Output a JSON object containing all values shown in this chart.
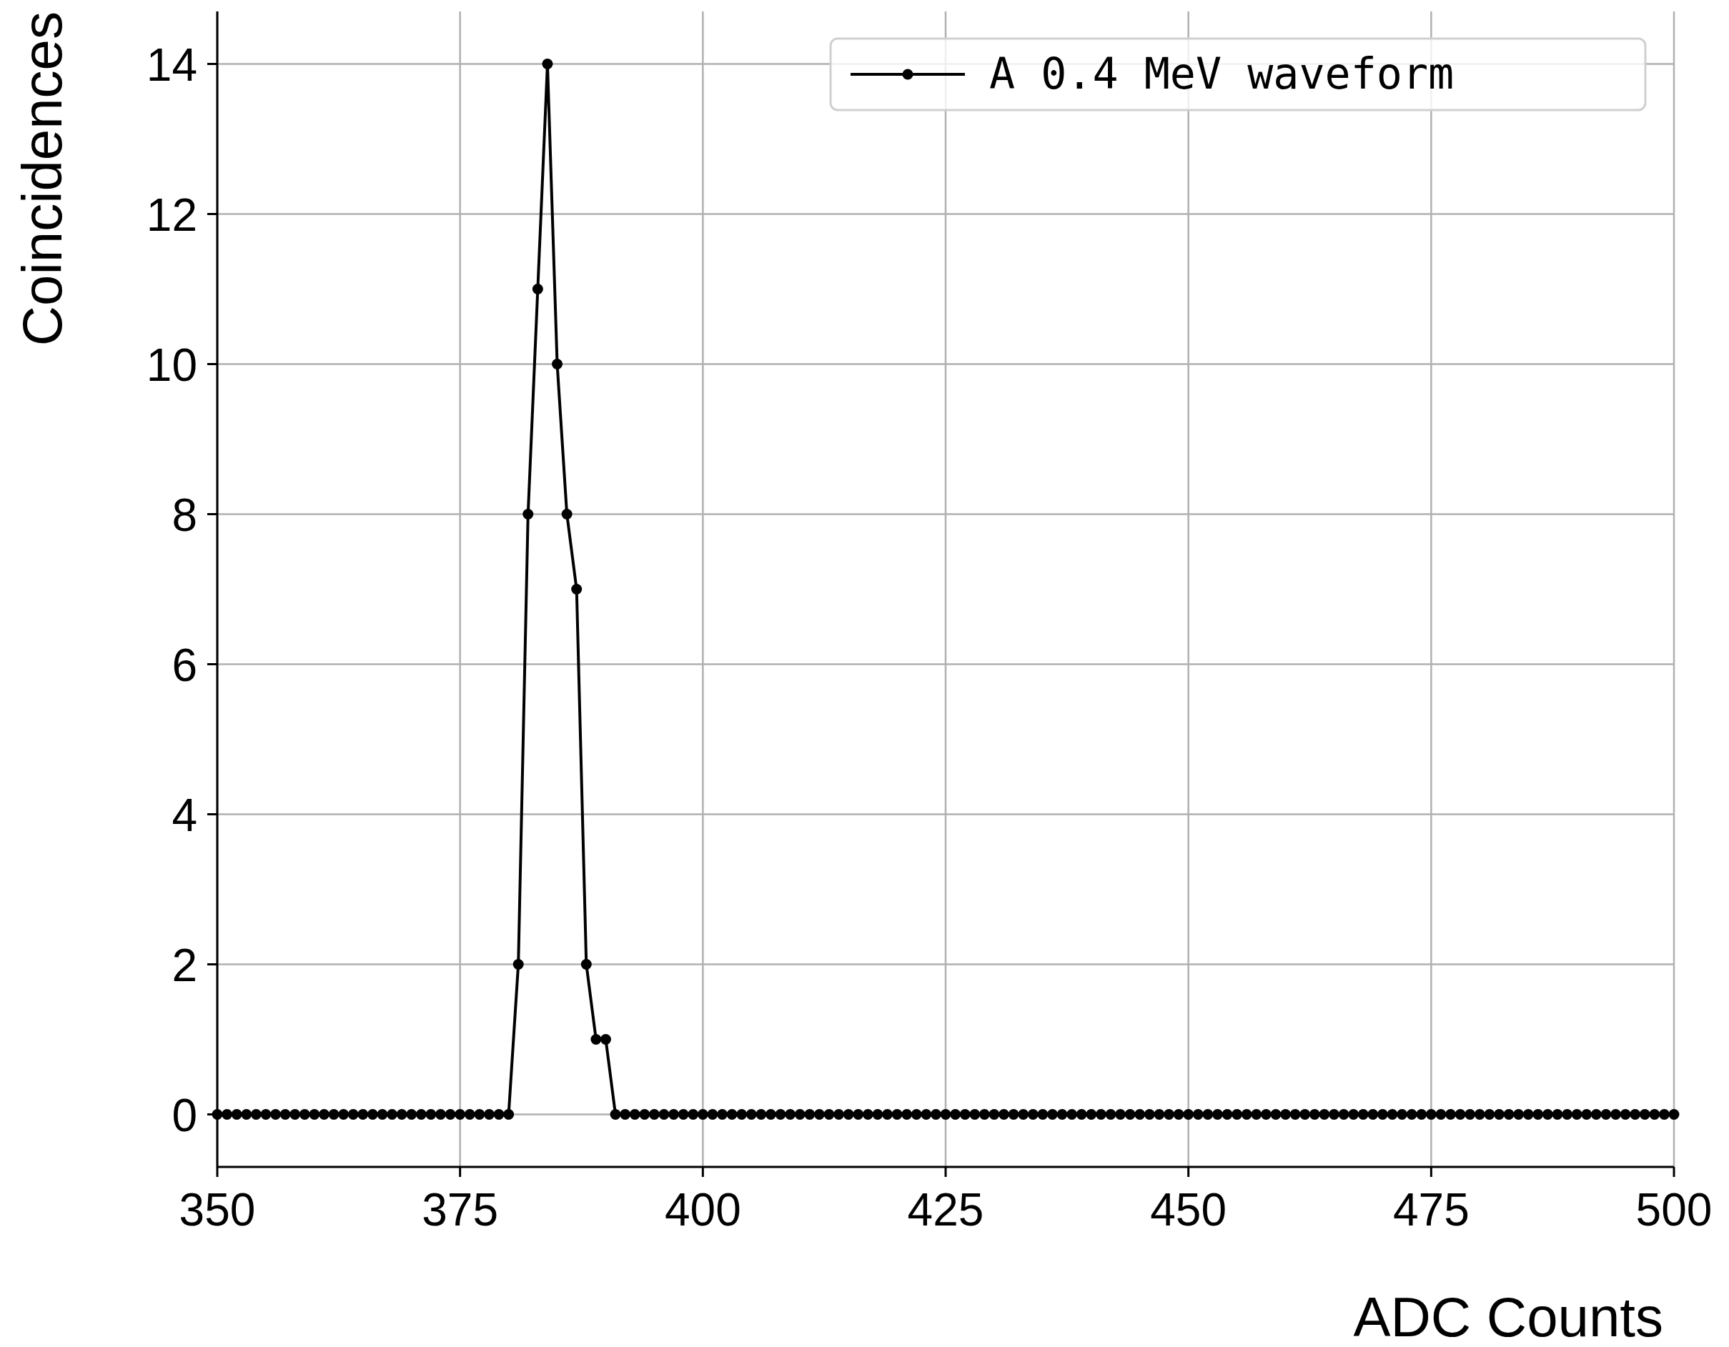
{
  "chart_data": {
    "type": "line",
    "xlabel": "ADC Counts",
    "ylabel": "Coincidences",
    "xlim": [
      350,
      500
    ],
    "xticks": [
      350,
      375,
      400,
      425,
      450,
      475,
      500
    ],
    "ylim": [
      -0.7,
      14.7
    ],
    "yticks": [
      0,
      2,
      4,
      6,
      8,
      10,
      12,
      14
    ],
    "grid": true,
    "legend": "top right",
    "marker": "circle",
    "line_style": "solid",
    "series": [
      {
        "name": "A 0.4 MeV waveform",
        "color": "#000000",
        "x": [
          350,
          351,
          352,
          353,
          354,
          355,
          356,
          357,
          358,
          359,
          360,
          361,
          362,
          363,
          364,
          365,
          366,
          367,
          368,
          369,
          370,
          371,
          372,
          373,
          374,
          375,
          376,
          377,
          378,
          379,
          380,
          381,
          382,
          383,
          384,
          385,
          386,
          387,
          388,
          389,
          390,
          391,
          392,
          393,
          394,
          395,
          396,
          397,
          398,
          399,
          400,
          401,
          402,
          403,
          404,
          405,
          406,
          407,
          408,
          409,
          410,
          411,
          412,
          413,
          414,
          415,
          416,
          417,
          418,
          419,
          420,
          421,
          422,
          423,
          424,
          425,
          426,
          427,
          428,
          429,
          430,
          431,
          432,
          433,
          434,
          435,
          436,
          437,
          438,
          439,
          440,
          441,
          442,
          443,
          444,
          445,
          446,
          447,
          448,
          449,
          450,
          451,
          452,
          453,
          454,
          455,
          456,
          457,
          458,
          459,
          460,
          461,
          462,
          463,
          464,
          465,
          466,
          467,
          468,
          469,
          470,
          471,
          472,
          473,
          474,
          475,
          476,
          477,
          478,
          479,
          480,
          481,
          482,
          483,
          484,
          485,
          486,
          487,
          488,
          489,
          490,
          491,
          492,
          493,
          494,
          495,
          496,
          497,
          498,
          499,
          500
        ],
        "values": [
          0,
          0,
          0,
          0,
          0,
          0,
          0,
          0,
          0,
          0,
          0,
          0,
          0,
          0,
          0,
          0,
          0,
          0,
          0,
          0,
          0,
          0,
          0,
          0,
          0,
          0,
          0,
          0,
          0,
          0,
          0,
          2,
          8,
          11,
          14,
          10,
          8,
          7,
          2,
          1,
          1,
          0,
          0,
          0,
          0,
          0,
          0,
          0,
          0,
          0,
          0,
          0,
          0,
          0,
          0,
          0,
          0,
          0,
          0,
          0,
          0,
          0,
          0,
          0,
          0,
          0,
          0,
          0,
          0,
          0,
          0,
          0,
          0,
          0,
          0,
          0,
          0,
          0,
          0,
          0,
          0,
          0,
          0,
          0,
          0,
          0,
          0,
          0,
          0,
          0,
          0,
          0,
          0,
          0,
          0,
          0,
          0,
          0,
          0,
          0,
          0,
          0,
          0,
          0,
          0,
          0,
          0,
          0,
          0,
          0,
          0,
          0,
          0,
          0,
          0,
          0,
          0,
          0,
          0,
          0,
          0,
          0,
          0,
          0,
          0,
          0,
          0,
          0,
          0,
          0,
          0,
          0,
          0,
          0,
          0,
          0,
          0,
          0,
          0,
          0,
          0,
          0,
          0,
          0,
          0,
          0,
          0,
          0,
          0,
          0,
          0
        ]
      }
    ]
  }
}
